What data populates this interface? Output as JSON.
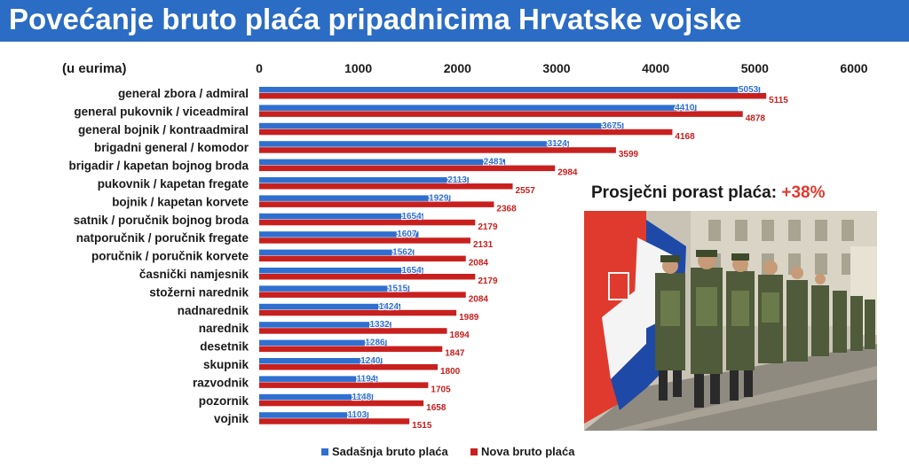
{
  "title": "Povećanje bruto plaća pripadnicima Hrvatske vojske",
  "callout": {
    "label": "Prosječni porast plaća:",
    "value": "+38%"
  },
  "colors": {
    "current": "#2f6fd0",
    "new": "#c8201e",
    "title_bg": "#2b6cc4"
  },
  "chart_data": {
    "type": "bar",
    "orientation": "horizontal",
    "unit_label": "(u eurima)",
    "xlim": [
      0,
      6000
    ],
    "xticks": [
      0,
      1000,
      2000,
      3000,
      4000,
      5000,
      6000
    ],
    "categories": [
      "general zbora / admiral",
      "general pukovnik / viceadmiral",
      "general bojnik / kontraadmiral",
      "brigadni general / komodor",
      "brigadir / kapetan bojnog broda",
      "pukovnik / kapetan fregate",
      "bojnik / kapetan korvete",
      "satnik / poručnik bojnog broda",
      "natporučnik / poručnik fregate",
      "poručnik / poručnik korvete",
      "časnički namjesnik",
      "stožerni narednik",
      "nadnarednik",
      "narednik",
      "desetnik",
      "skupnik",
      "razvodnik",
      "pozornik",
      "vojnik"
    ],
    "series": [
      {
        "name": "Sadašnja bruto plaća",
        "color": "#2f6fd0",
        "values": [
          5053,
          4410,
          3675,
          3124,
          2481,
          2113,
          1929,
          1654,
          1607,
          1562,
          1654,
          1515,
          1424,
          1332,
          1286,
          1240,
          1194,
          1148,
          1103
        ]
      },
      {
        "name": "Nova bruto plaća",
        "color": "#c8201e",
        "values": [
          5115,
          4878,
          4168,
          3599,
          2984,
          2557,
          2368,
          2179,
          2131,
          2084,
          2179,
          2084,
          1989,
          1894,
          1847,
          1800,
          1705,
          1658,
          1515
        ]
      }
    ],
    "legend_position": "bottom"
  },
  "image": {
    "alt": "soldiers-parade-photo-with-croatian-flags"
  }
}
